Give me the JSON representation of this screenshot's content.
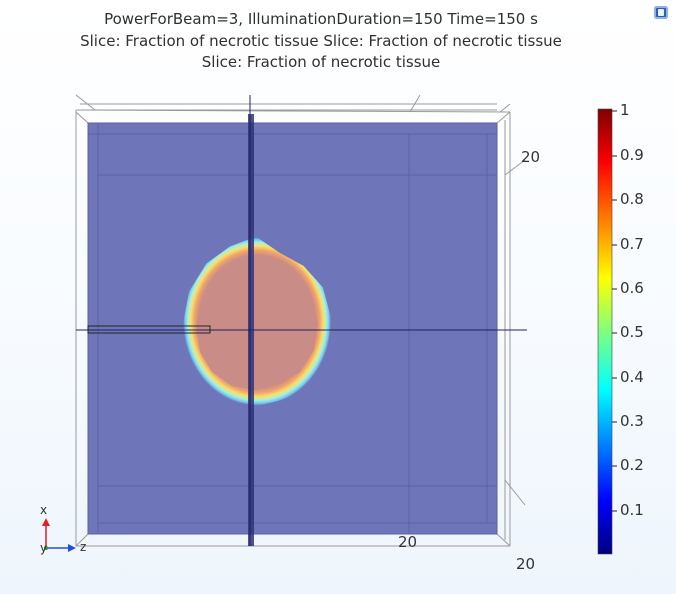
{
  "header": {
    "line1": "PowerForBeam=3, IlluminationDuration=150 Time=150 s",
    "line2": "Slice: Fraction of necrotic tissue  Slice: Fraction of necrotic tissue",
    "line3": "Slice: Fraction of necrotic tissue"
  },
  "axes": {
    "label_right_top": "20",
    "label_bottom_mid": "20",
    "label_bottom_right": "20",
    "triad_x": "x",
    "triad_y": "y",
    "triad_z": "z"
  },
  "colorbar": {
    "ticks": [
      "1",
      "0.9",
      "0.8",
      "0.7",
      "0.6",
      "0.5",
      "0.4",
      "0.3",
      "0.2",
      "0.1"
    ],
    "colors": [
      "#00007f",
      "#0000ff",
      "#00ffff",
      "#ffff00",
      "#ff7f00",
      "#ff0000",
      "#7f0000"
    ]
  },
  "colors": {
    "slice_fill": "#6f75b9",
    "necrotic_core": "#c98c86"
  }
}
